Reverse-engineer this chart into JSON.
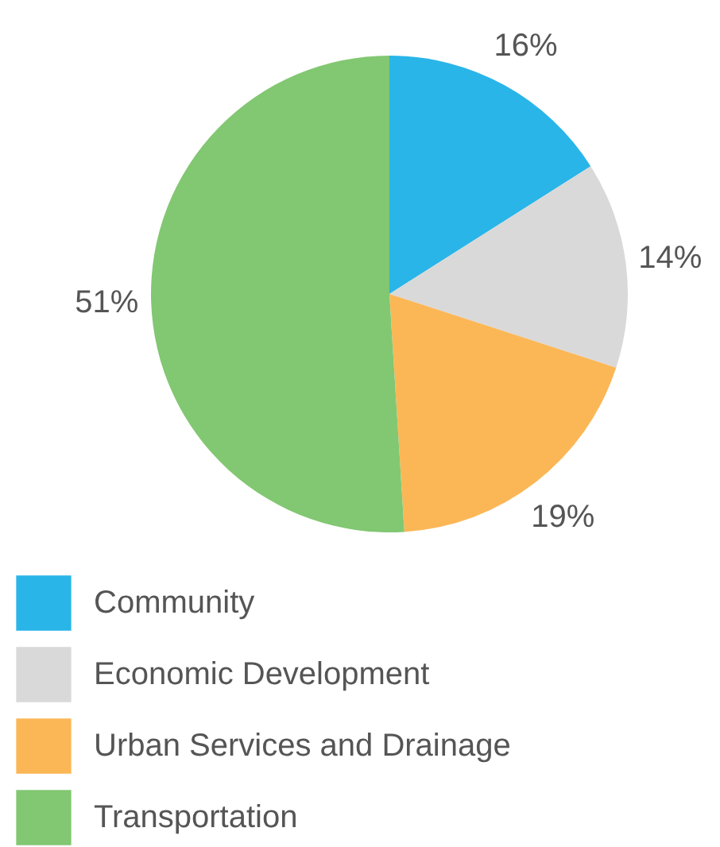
{
  "chart_data": {
    "type": "pie",
    "categories": [
      "Community",
      "Economic Development",
      "Urban Services and Drainage",
      "Transportation"
    ],
    "values": [
      16,
      14,
      19,
      51
    ],
    "colors": [
      "#29b5e8",
      "#d9d9d9",
      "#fbb756",
      "#82c772"
    ],
    "value_labels": [
      "16%",
      "14%",
      "19%",
      "51%"
    ],
    "legend": "bottom"
  }
}
